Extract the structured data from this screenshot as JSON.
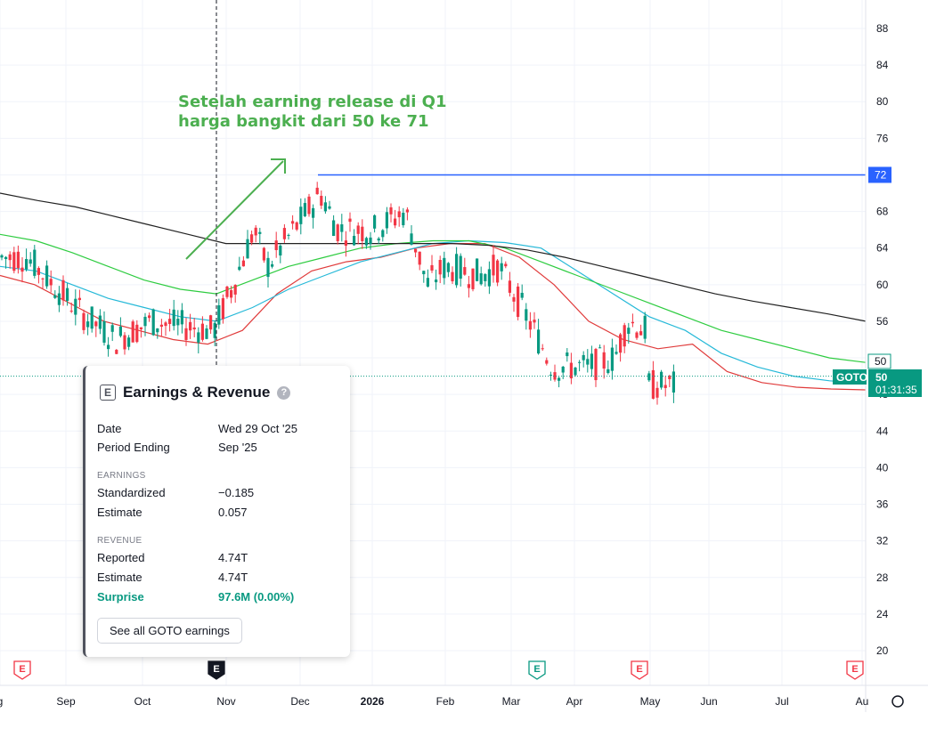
{
  "chart_data": {
    "type": "line",
    "symbol": "GOTO",
    "last_price": "50",
    "countdown": "01:31:35",
    "y_ticks": [
      20,
      24,
      28,
      32,
      36,
      40,
      44,
      48,
      56,
      60,
      64,
      68,
      76,
      80,
      84,
      88
    ],
    "ylim": [
      18,
      90
    ],
    "x_labels": [
      "g",
      "Sep",
      "Oct",
      "Nov",
      "Dec",
      "2026",
      "Feb",
      "Mar",
      "Apr",
      "May",
      "Jun",
      "Jul",
      "Au"
    ],
    "resistance": 72,
    "resistance_label": "72",
    "ma_label": "50",
    "series": [
      {
        "color": "#e03b3b",
        "values": [
          61,
          60,
          58,
          56,
          55,
          54,
          53.5,
          55,
          59,
          61.5,
          62.5,
          63,
          64,
          64.5,
          64.5,
          63,
          60,
          56,
          54,
          53,
          53.5,
          50.5,
          49.3,
          48.8,
          48.6,
          48.5
        ]
      },
      {
        "color": "#26b9d8",
        "values": [
          62,
          61.5,
          60,
          58.5,
          57.5,
          56.5,
          56,
          57.5,
          59.5,
          61,
          62.5,
          63.5,
          64.5,
          64.8,
          64.6,
          64,
          61.5,
          59,
          56.5,
          55,
          52.5,
          51,
          50,
          49.5,
          49.2
        ]
      },
      {
        "color": "#2ecc40",
        "values": [
          65.5,
          64.8,
          63.5,
          62,
          60.5,
          59.5,
          59,
          60.5,
          62,
          63,
          64,
          64.5,
          64.8,
          64.8,
          64,
          62.5,
          61,
          59.5,
          58,
          56.5,
          55,
          54,
          53,
          52,
          51.5
        ]
      },
      {
        "color": "#222222",
        "values": [
          70,
          69.2,
          68.5,
          67.5,
          66.5,
          65.5,
          64.5,
          64.5,
          64.5,
          64.5,
          64.5,
          64.5,
          64.5,
          64.3,
          63.8,
          63,
          62,
          61,
          60,
          59,
          58.2,
          57.5,
          56.8,
          56
        ]
      }
    ]
  },
  "annotation": {
    "line1": "Setelah earning release di Q1",
    "line2": "harga bangkit dari 50 ke 71"
  },
  "earnings_panel": {
    "icon_letter": "E",
    "title": "Earnings & Revenue",
    "help": "?",
    "date_label": "Date",
    "date_value": "Wed 29 Oct '25",
    "period_label": "Period Ending",
    "period_value": "Sep '25",
    "earnings_section": "EARNINGS",
    "standardized_label": "Standardized",
    "standardized_value": "−0.185",
    "eps_estimate_label": "Estimate",
    "eps_estimate_value": "0.057",
    "revenue_section": "REVENUE",
    "reported_label": "Reported",
    "reported_value": "4.74T",
    "rev_estimate_label": "Estimate",
    "rev_estimate_value": "4.74T",
    "surprise_label": "Surprise",
    "surprise_value": "97.6M (0.00%)",
    "see_all_button": "See all GOTO earnings"
  },
  "event_markers": [
    {
      "letter": "E",
      "color": "#f23645"
    },
    {
      "letter": "E",
      "color": "#131722"
    },
    {
      "letter": "E",
      "color": "#089981"
    },
    {
      "letter": "E",
      "color": "#f23645"
    },
    {
      "letter": "E",
      "color": "#f23645"
    }
  ],
  "colors": {
    "up": "#089981",
    "down": "#f23645",
    "resistance": "#2962ff",
    "annotation": "#4caf50",
    "last_price_bg": "#089981"
  }
}
